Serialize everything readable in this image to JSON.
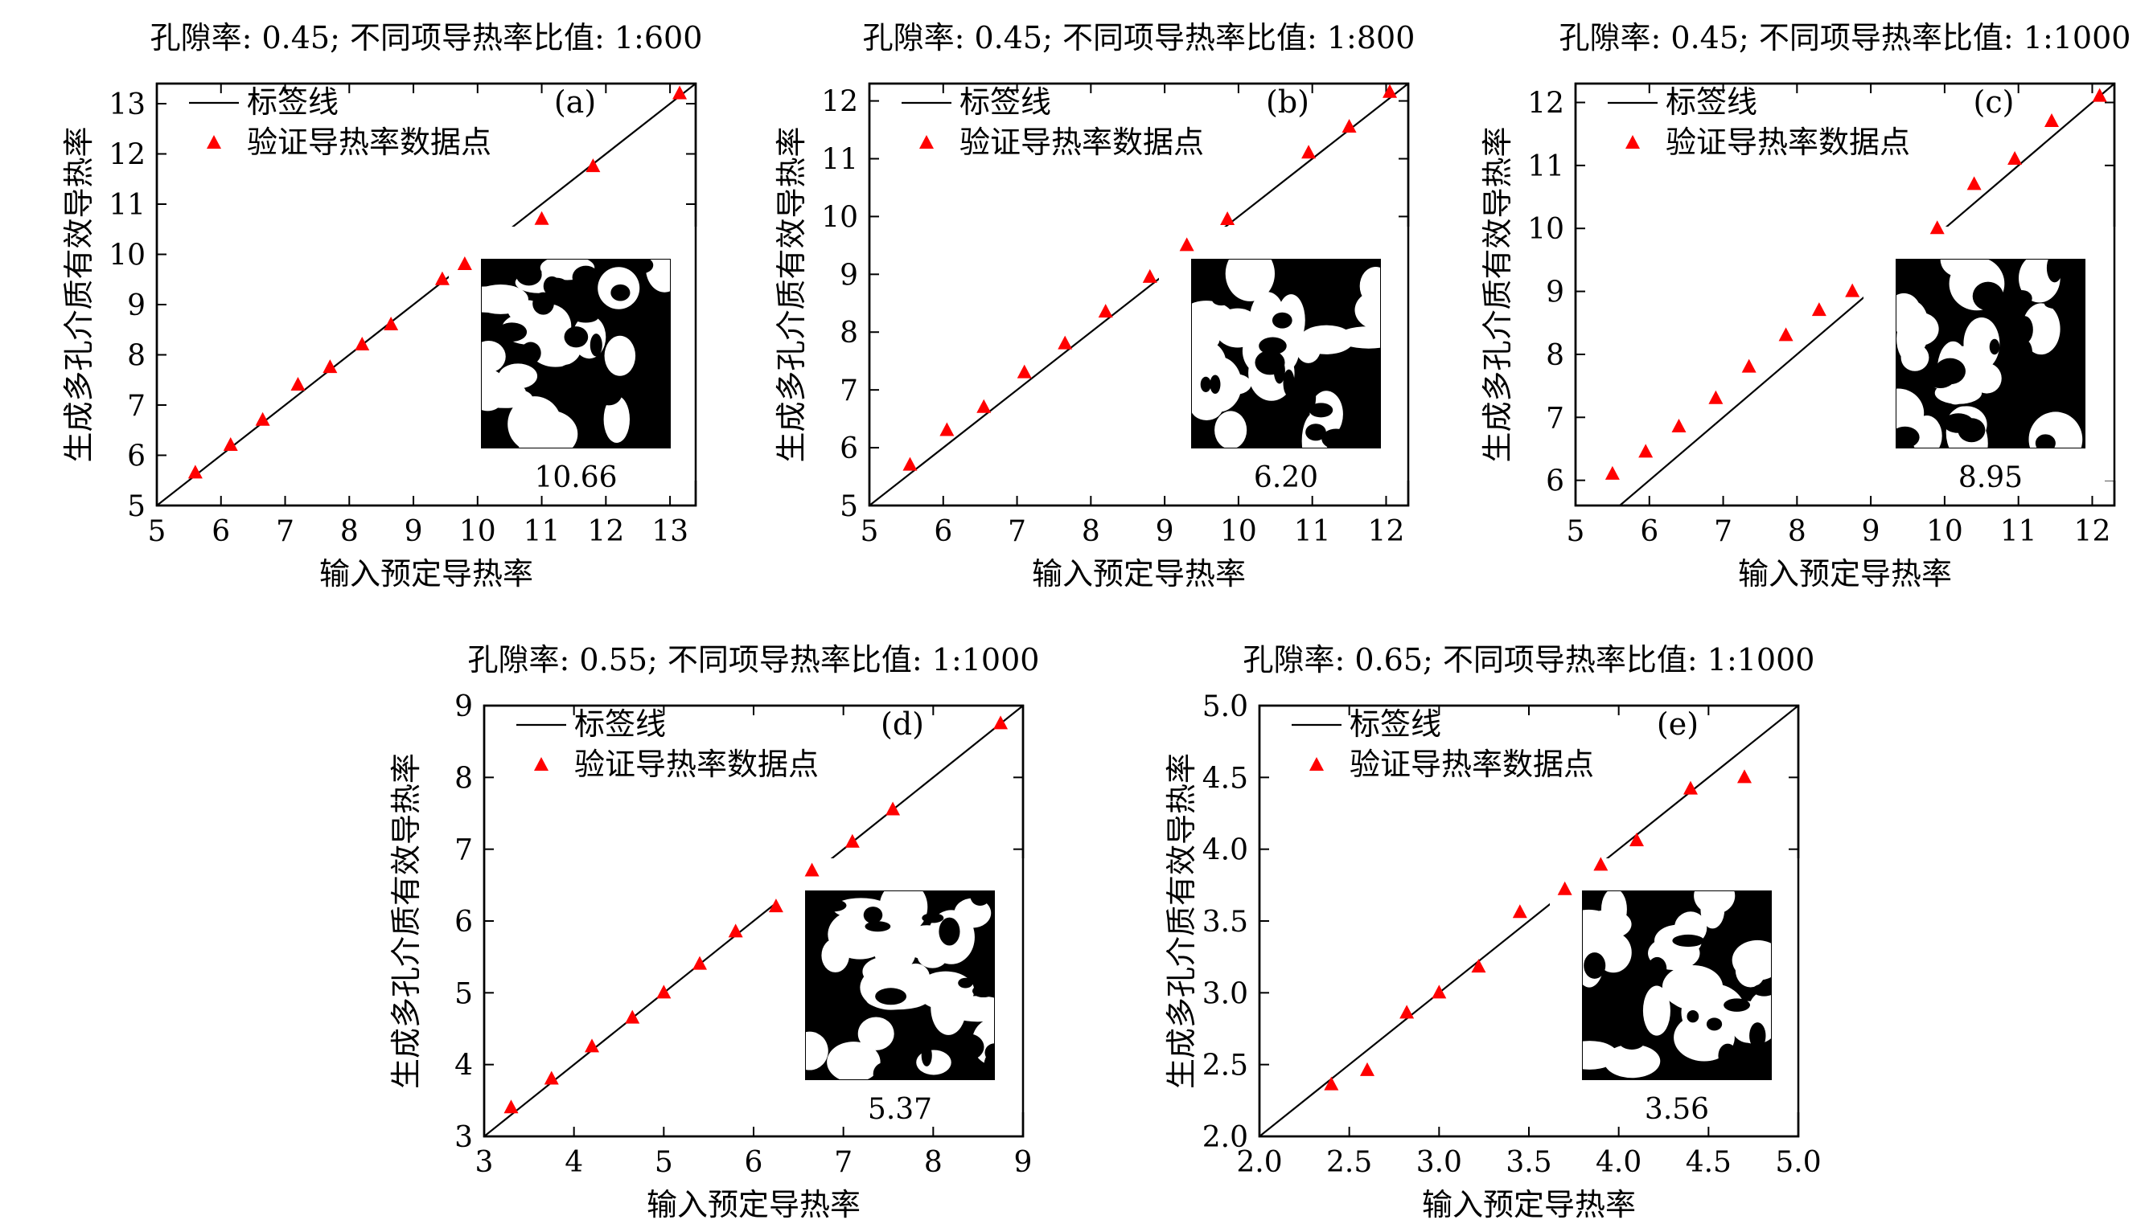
{
  "figure": {
    "legend": {
      "line_label": "标签线",
      "marker_label": "验证导热率数据点"
    },
    "xlabel": "输入预定导热率",
    "ylabel": "生成多孔介质有效导热率"
  },
  "chart_data": [
    {
      "type": "scatter",
      "title": "孔隙率: 0.45; 不同项导热率比值: 1:600",
      "panel_label": "(a)",
      "xlabel": "输入预定导热率",
      "ylabel": "生成多孔介质有效导热率",
      "xlim": [
        5,
        13.4
      ],
      "ylim": [
        5,
        13.4
      ],
      "xticks": [
        5,
        6,
        7,
        8,
        9,
        10,
        11,
        12,
        13
      ],
      "yticks": [
        5,
        6,
        7,
        8,
        9,
        10,
        11,
        12,
        13
      ],
      "tick_decimals": 0,
      "reference_line": {
        "label": "标签线",
        "x": [
          5,
          13.4
        ],
        "y": [
          5,
          13.4
        ]
      },
      "series": [
        {
          "name": "验证导热率数据点",
          "marker": "triangle",
          "color": "#ff0000",
          "x": [
            5.6,
            6.15,
            6.65,
            7.2,
            7.7,
            8.2,
            8.65,
            9.45,
            9.8,
            11.0,
            11.8,
            13.15
          ],
          "y": [
            5.65,
            6.2,
            6.7,
            7.4,
            7.75,
            8.2,
            8.6,
            9.5,
            9.8,
            10.7,
            11.75,
            13.2
          ]
        }
      ],
      "inset_value": "10.66",
      "legend_position": "top-left",
      "grid": false
    },
    {
      "type": "scatter",
      "title": "孔隙率: 0.45; 不同项导热率比值: 1:800",
      "panel_label": "(b)",
      "xlabel": "输入预定导热率",
      "ylabel": "生成多孔介质有效导热率",
      "xlim": [
        5,
        12.3
      ],
      "ylim": [
        5,
        12.3
      ],
      "xticks": [
        5,
        6,
        7,
        8,
        9,
        10,
        11,
        12
      ],
      "yticks": [
        5,
        6,
        7,
        8,
        9,
        10,
        11,
        12
      ],
      "tick_decimals": 0,
      "reference_line": {
        "label": "标签线",
        "x": [
          5,
          12.3
        ],
        "y": [
          5,
          12.3
        ]
      },
      "series": [
        {
          "name": "验证导热率数据点",
          "marker": "triangle",
          "color": "#ff0000",
          "x": [
            5.55,
            6.05,
            6.55,
            7.1,
            7.65,
            8.2,
            8.8,
            9.3,
            9.85,
            10.95,
            11.5,
            12.05
          ],
          "y": [
            5.7,
            6.3,
            6.7,
            7.3,
            7.8,
            8.35,
            8.95,
            9.5,
            9.95,
            11.1,
            11.55,
            12.15
          ]
        }
      ],
      "inset_value": "6.20",
      "legend_position": "top-left",
      "grid": false
    },
    {
      "type": "scatter",
      "title": "孔隙率: 0.45; 不同项导热率比值: 1:1000",
      "panel_label": "(c)",
      "xlabel": "输入预定导热率",
      "ylabel": "生成多孔介质有效导热率",
      "xlim": [
        5,
        12.3
      ],
      "ylim": [
        5.6,
        12.3
      ],
      "xticks": [
        5,
        6,
        7,
        8,
        9,
        10,
        11,
        12
      ],
      "yticks": [
        6,
        7,
        8,
        9,
        10,
        11,
        12
      ],
      "tick_decimals": 0,
      "reference_line": {
        "label": "标签线",
        "x": [
          5.6,
          12.3
        ],
        "y": [
          5.6,
          12.3
        ]
      },
      "series": [
        {
          "name": "验证导热率数据点",
          "marker": "triangle",
          "color": "#ff0000",
          "x": [
            5.5,
            5.95,
            6.4,
            6.9,
            7.35,
            7.85,
            8.3,
            8.75,
            9.9,
            10.4,
            10.95,
            11.45,
            12.1
          ],
          "y": [
            6.1,
            6.45,
            6.85,
            7.3,
            7.8,
            8.3,
            8.7,
            9.0,
            10.0,
            10.7,
            11.1,
            11.7,
            12.1
          ]
        }
      ],
      "inset_value": "8.95",
      "legend_position": "top-left",
      "grid": false
    },
    {
      "type": "scatter",
      "title": "孔隙率: 0.55; 不同项导热率比值: 1:1000",
      "panel_label": "(d)",
      "xlabel": "输入预定导热率",
      "ylabel": "生成多孔介质有效导热率",
      "xlim": [
        3,
        9
      ],
      "ylim": [
        3,
        9
      ],
      "xticks": [
        3,
        4,
        5,
        6,
        7,
        8,
        9
      ],
      "yticks": [
        3,
        4,
        5,
        6,
        7,
        8,
        9
      ],
      "tick_decimals": 0,
      "reference_line": {
        "label": "标签线",
        "x": [
          3,
          9
        ],
        "y": [
          3,
          9
        ]
      },
      "series": [
        {
          "name": "验证导热率数据点",
          "marker": "triangle",
          "color": "#ff0000",
          "x": [
            3.3,
            3.75,
            4.2,
            4.65,
            5.0,
            5.4,
            5.8,
            6.25,
            6.65,
            7.1,
            7.55,
            8.75
          ],
          "y": [
            3.4,
            3.8,
            4.25,
            4.65,
            5.0,
            5.4,
            5.85,
            6.2,
            6.7,
            7.1,
            7.55,
            8.75
          ]
        }
      ],
      "inset_value": "5.37",
      "legend_position": "top-left",
      "grid": false
    },
    {
      "type": "scatter",
      "title": "孔隙率: 0.65; 不同项导热率比值: 1:1000",
      "panel_label": "(e)",
      "xlabel": "输入预定导热率",
      "ylabel": "生成多孔介质有效导热率",
      "xlim": [
        2.0,
        5.0
      ],
      "ylim": [
        2.0,
        5.0
      ],
      "xticks": [
        2.0,
        2.5,
        3.0,
        3.5,
        4.0,
        4.5,
        5.0
      ],
      "yticks": [
        2.0,
        2.5,
        3.0,
        3.5,
        4.0,
        4.5,
        5.0
      ],
      "tick_decimals": 1,
      "reference_line": {
        "label": "标签线",
        "x": [
          2.0,
          5.0
        ],
        "y": [
          2.0,
          5.0
        ]
      },
      "series": [
        {
          "name": "验证导热率数据点",
          "marker": "triangle",
          "color": "#ff0000",
          "x": [
            2.4,
            2.6,
            2.82,
            3.0,
            3.22,
            3.45,
            3.7,
            3.9,
            4.1,
            4.4,
            4.7
          ],
          "y": [
            2.36,
            2.46,
            2.86,
            3.0,
            3.18,
            3.56,
            3.72,
            3.89,
            4.06,
            4.42,
            4.5
          ]
        }
      ],
      "inset_value": "3.56",
      "legend_position": "top-left",
      "grid": false
    }
  ]
}
